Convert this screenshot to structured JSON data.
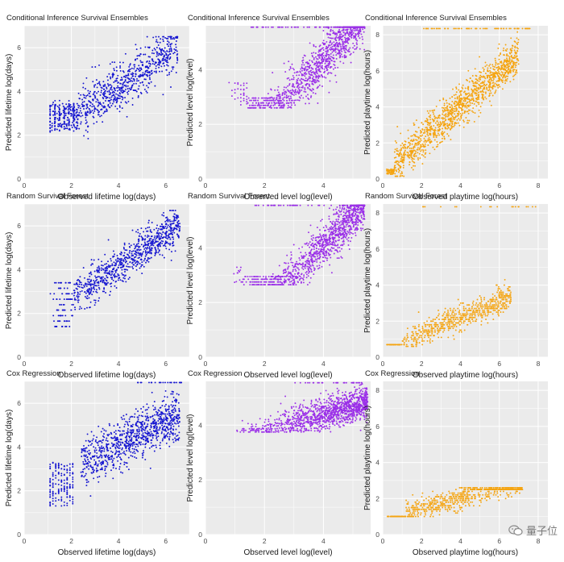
{
  "chart_data": [
    {
      "type": "scatter",
      "title": "Conditional Inference Survival Ensembles",
      "xlabel": "Observed lifetime log(days)",
      "ylabel": "Predicted lifetime log(days)",
      "xlim": [
        0,
        7
      ],
      "ylim": [
        0,
        7
      ],
      "xticks": [
        0,
        2,
        4,
        6
      ],
      "yticks": [
        0,
        2,
        4,
        6
      ],
      "grid": true,
      "color": "#1414d0",
      "model": "lifetime_cise"
    },
    {
      "type": "scatter",
      "title": "Conditional Inference Survival Ensembles",
      "xlabel": "Observed level log(level)",
      "ylabel": "Predicted level log(level)",
      "xlim": [
        0,
        5.6
      ],
      "ylim": [
        0,
        5.6
      ],
      "xticks": [
        0,
        2,
        4
      ],
      "yticks": [
        0,
        2,
        4
      ],
      "grid": true,
      "color": "#9b30e8",
      "model": "level_cise"
    },
    {
      "type": "scatter",
      "title": "Conditional Inference Survival Ensembles",
      "xlabel": "Observed playtime log(hours)",
      "ylabel": "Predicted playtime log(hours)",
      "xlim": [
        0,
        8.5
      ],
      "ylim": [
        0,
        8.5
      ],
      "xticks": [
        0,
        2,
        4,
        6,
        8
      ],
      "yticks": [
        0,
        2,
        4,
        6,
        8
      ],
      "grid": true,
      "color": "#f5a410",
      "model": "playtime_cise"
    },
    {
      "type": "scatter",
      "title": "Random Survival Forest",
      "xlabel": "Observed lifetime log(days)",
      "ylabel": "Predicted lifetime log(days)",
      "xlim": [
        0,
        7
      ],
      "ylim": [
        0,
        7
      ],
      "xticks": [
        0,
        2,
        4,
        6
      ],
      "yticks": [
        0,
        2,
        4,
        6
      ],
      "grid": true,
      "color": "#1414d0",
      "model": "lifetime_rsf"
    },
    {
      "type": "scatter",
      "title": "Random Survival Forest",
      "xlabel": "Observed level log(level)",
      "ylabel": "Predicted level log(level)",
      "xlim": [
        0,
        5.6
      ],
      "ylim": [
        0,
        5.6
      ],
      "xticks": [
        0,
        2,
        4
      ],
      "yticks": [
        0,
        2,
        4
      ],
      "grid": true,
      "color": "#9b30e8",
      "model": "level_rsf"
    },
    {
      "type": "scatter",
      "title": "Random Survival Forest",
      "xlabel": "Observed playtime log(hours)",
      "ylabel": "Predicted playtime log(hours)",
      "xlim": [
        0,
        8.5
      ],
      "ylim": [
        0,
        8.5
      ],
      "xticks": [
        0,
        2,
        4,
        6,
        8
      ],
      "yticks": [
        0,
        2,
        4,
        6,
        8
      ],
      "grid": true,
      "color": "#f5a410",
      "model": "playtime_rsf"
    },
    {
      "type": "scatter",
      "title": "Cox Regression",
      "xlabel": "Observed lifetime log(days)",
      "ylabel": "Predicted lifetime log(days)",
      "xlim": [
        0,
        7
      ],
      "ylim": [
        0,
        7
      ],
      "xticks": [
        0,
        2,
        4,
        6
      ],
      "yticks": [
        0,
        2,
        4,
        6
      ],
      "grid": true,
      "color": "#1414d0",
      "model": "lifetime_cox"
    },
    {
      "type": "scatter",
      "title": "Cox Regression",
      "xlabel": "Observed level log(level)",
      "ylabel": "Predicted level log(level)",
      "xlim": [
        0,
        5.6
      ],
      "ylim": [
        0,
        5.6
      ],
      "xticks": [
        0,
        2,
        4
      ],
      "yticks": [
        0,
        2,
        4
      ],
      "grid": true,
      "color": "#9b30e8",
      "model": "level_cox"
    },
    {
      "type": "scatter",
      "title": "Cox Regression",
      "xlabel": "Observed playtime log(hours)",
      "ylabel": "Predicted playtime log(hours)",
      "xlim": [
        0,
        8.5
      ],
      "ylim": [
        0,
        8.5
      ],
      "xticks": [
        0,
        2,
        4,
        6,
        8
      ],
      "yticks": [
        0,
        2,
        4,
        6,
        8
      ],
      "grid": true,
      "color": "#f5a410",
      "model": "playtime_cox"
    }
  ],
  "watermark": {
    "text": "量子位",
    "icon": "wechat-icon"
  }
}
